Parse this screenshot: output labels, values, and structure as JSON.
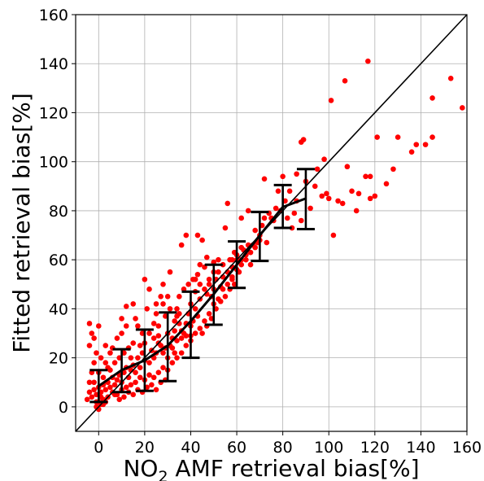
{
  "chart_data": {
    "type": "scatter",
    "xlabel": "NO",
    "xlabel_sub": "2",
    "xlabel_rest": " AMF retrieval bias[%]",
    "ylabel": "Fitted retrieval bias[%]",
    "xlim": [
      -10,
      160
    ],
    "ylim": [
      -10,
      160
    ],
    "x_ticks": [
      0,
      20,
      40,
      60,
      80,
      100,
      120,
      140,
      160
    ],
    "y_ticks": [
      0,
      20,
      40,
      60,
      80,
      100,
      120,
      140,
      160
    ],
    "x_tick_labels": [
      "0",
      "20",
      "40",
      "60",
      "80",
      "100",
      "120",
      "140",
      "160"
    ],
    "y_tick_labels": [
      "0",
      "20",
      "40",
      "60",
      "80",
      "100",
      "120",
      "140",
      "160"
    ],
    "grid": true,
    "identity_line": true,
    "colors": {
      "points": "#ff0000",
      "fit": "#000000",
      "identity": "#000000",
      "grid": "#b0b0b0"
    },
    "points": [
      [
        117,
        141
      ],
      [
        153,
        134
      ],
      [
        107,
        133
      ],
      [
        101,
        125
      ],
      [
        145,
        126
      ],
      [
        158,
        122
      ],
      [
        121,
        110
      ],
      [
        130,
        110
      ],
      [
        145,
        110
      ],
      [
        138,
        107
      ],
      [
        136,
        104
      ],
      [
        128,
        97
      ],
      [
        142,
        107
      ],
      [
        110,
        88
      ],
      [
        113,
        87
      ],
      [
        118,
        85
      ],
      [
        116,
        94
      ],
      [
        118,
        94
      ],
      [
        112,
        80
      ],
      [
        102,
        70
      ],
      [
        120,
        86
      ],
      [
        125,
        91
      ],
      [
        108,
        98
      ],
      [
        95,
        97
      ],
      [
        98,
        101
      ],
      [
        88,
        108
      ],
      [
        89,
        109
      ],
      [
        94,
        90
      ],
      [
        97,
        86
      ],
      [
        99,
        87
      ],
      [
        104,
        84
      ],
      [
        106,
        83
      ],
      [
        100,
        85
      ],
      [
        90,
        92
      ],
      [
        92,
        81
      ],
      [
        85,
        79
      ],
      [
        86,
        84
      ],
      [
        88,
        76
      ],
      [
        82,
        77
      ],
      [
        84,
        73
      ],
      [
        86,
        95
      ],
      [
        80,
        94
      ],
      [
        78,
        88
      ],
      [
        83,
        88
      ],
      [
        81,
        84
      ],
      [
        79,
        80
      ],
      [
        77,
        81
      ],
      [
        76,
        76
      ],
      [
        74,
        79
      ],
      [
        72,
        77
      ],
      [
        70,
        70
      ],
      [
        71,
        74
      ],
      [
        73,
        67
      ],
      [
        69,
        67
      ],
      [
        67,
        66
      ],
      [
        68,
        72
      ],
      [
        75,
        77
      ],
      [
        72,
        93
      ],
      [
        65,
        66
      ],
      [
        63,
        64
      ],
      [
        64,
        60
      ],
      [
        66,
        58
      ],
      [
        62,
        58
      ],
      [
        60,
        60
      ],
      [
        61,
        55
      ],
      [
        58,
        57
      ],
      [
        57,
        60
      ],
      [
        59,
        63
      ],
      [
        58,
        52
      ],
      [
        56,
        83
      ],
      [
        55,
        73
      ],
      [
        62,
        77
      ],
      [
        65,
        80
      ],
      [
        52,
        55
      ],
      [
        53,
        49
      ],
      [
        50,
        48
      ],
      [
        51,
        52
      ],
      [
        49,
        45
      ],
      [
        47,
        46
      ],
      [
        54,
        53
      ],
      [
        48,
        52
      ],
      [
        46,
        57
      ],
      [
        50,
        59
      ],
      [
        45,
        68
      ],
      [
        47,
        61
      ],
      [
        44,
        44
      ],
      [
        42,
        40
      ],
      [
        43,
        37
      ],
      [
        41,
        35
      ],
      [
        40,
        42
      ],
      [
        39,
        38
      ],
      [
        38,
        34
      ],
      [
        37,
        30
      ],
      [
        40,
        29
      ],
      [
        36,
        28
      ],
      [
        42,
        47
      ],
      [
        38,
        70
      ],
      [
        43,
        70
      ],
      [
        36,
        66
      ],
      [
        44,
        58
      ],
      [
        35,
        34
      ],
      [
        33,
        31
      ],
      [
        34,
        37
      ],
      [
        32,
        28
      ],
      [
        31,
        25
      ],
      [
        30,
        30
      ],
      [
        29,
        24
      ],
      [
        33,
        22
      ],
      [
        34,
        40
      ],
      [
        30,
        45
      ],
      [
        31,
        55
      ],
      [
        28,
        42
      ],
      [
        27,
        25
      ],
      [
        26,
        29
      ],
      [
        25,
        22
      ],
      [
        24,
        20
      ],
      [
        23,
        23
      ],
      [
        22,
        18
      ],
      [
        24,
        28
      ],
      [
        26,
        33
      ],
      [
        25,
        38
      ],
      [
        21,
        40
      ],
      [
        22,
        48
      ],
      [
        28,
        50
      ],
      [
        20,
        52
      ],
      [
        20,
        19
      ],
      [
        19,
        22
      ],
      [
        18,
        16
      ],
      [
        17,
        20
      ],
      [
        16,
        14
      ],
      [
        15,
        17
      ],
      [
        14,
        15
      ],
      [
        18,
        25
      ],
      [
        19,
        30
      ],
      [
        17,
        33
      ],
      [
        16,
        36
      ],
      [
        12,
        41
      ],
      [
        15,
        42
      ],
      [
        10,
        36
      ],
      [
        13,
        12
      ],
      [
        12,
        16
      ],
      [
        11,
        14
      ],
      [
        10,
        10
      ],
      [
        9,
        13
      ],
      [
        8,
        11
      ],
      [
        7,
        9
      ],
      [
        6,
        12
      ],
      [
        5,
        8
      ],
      [
        4,
        10
      ],
      [
        3,
        7
      ],
      [
        2,
        9
      ],
      [
        1,
        6
      ],
      [
        0,
        8
      ],
      [
        -1,
        5
      ],
      [
        -2,
        7
      ],
      [
        -3,
        4
      ],
      [
        -4,
        6
      ],
      [
        -5,
        3
      ],
      [
        -4,
        10
      ],
      [
        -3,
        14
      ],
      [
        -2,
        18
      ],
      [
        -1,
        22
      ],
      [
        -4,
        25
      ],
      [
        -3,
        30
      ],
      [
        -4,
        34
      ],
      [
        -2,
        28
      ],
      [
        0,
        33
      ],
      [
        1,
        20
      ],
      [
        3,
        25
      ],
      [
        5,
        22
      ],
      [
        0,
        2
      ],
      [
        1,
        1
      ],
      [
        2,
        3
      ],
      [
        -1,
        2
      ],
      [
        3,
        2
      ],
      [
        4,
        4
      ],
      [
        6,
        6
      ],
      [
        8,
        5
      ],
      [
        10,
        7
      ],
      [
        12,
        8
      ],
      [
        14,
        9
      ],
      [
        16,
        10
      ],
      [
        18,
        12
      ],
      [
        20,
        11
      ],
      [
        22,
        13
      ],
      [
        24,
        12
      ],
      [
        26,
        14
      ],
      [
        28,
        16
      ],
      [
        30,
        15
      ],
      [
        32,
        18
      ],
      [
        34,
        20
      ],
      [
        36,
        22
      ],
      [
        38,
        25
      ],
      [
        40,
        27
      ],
      [
        42,
        30
      ],
      [
        44,
        32
      ],
      [
        46,
        35
      ],
      [
        48,
        38
      ],
      [
        50,
        42
      ],
      [
        52,
        44
      ],
      [
        54,
        48
      ],
      [
        56,
        50
      ],
      [
        58,
        53
      ],
      [
        60,
        56
      ],
      [
        62,
        60
      ],
      [
        5,
        15
      ],
      [
        7,
        18
      ],
      [
        9,
        20
      ],
      [
        11,
        22
      ],
      [
        13,
        24
      ],
      [
        15,
        26
      ],
      [
        8,
        28
      ],
      [
        10,
        30
      ],
      [
        12,
        33
      ],
      [
        14,
        20
      ],
      [
        6,
        24
      ],
      [
        4,
        16
      ],
      [
        2,
        12
      ],
      [
        0,
        14
      ],
      [
        -2,
        10
      ],
      [
        20,
        26
      ],
      [
        22,
        30
      ],
      [
        24,
        34
      ],
      [
        26,
        26
      ],
      [
        28,
        22
      ],
      [
        30,
        20
      ],
      [
        32,
        24
      ],
      [
        34,
        27
      ],
      [
        36,
        31
      ],
      [
        38,
        29
      ],
      [
        40,
        33
      ],
      [
        25,
        42
      ],
      [
        27,
        45
      ],
      [
        29,
        37
      ],
      [
        31,
        40
      ],
      [
        3,
        18
      ],
      [
        7,
        5
      ],
      [
        9,
        3
      ],
      [
        11,
        4
      ],
      [
        13,
        6
      ],
      [
        15,
        5
      ],
      [
        17,
        7
      ],
      [
        19,
        6
      ],
      [
        21,
        8
      ],
      [
        23,
        9
      ],
      [
        25,
        7
      ],
      [
        27,
        10
      ],
      [
        29,
        11
      ],
      [
        2,
        1
      ],
      [
        -1,
        0
      ],
      [
        0,
        -1
      ],
      [
        1,
        4
      ],
      [
        45,
        30
      ],
      [
        47,
        33
      ],
      [
        49,
        36
      ],
      [
        51,
        40
      ],
      [
        53,
        43
      ],
      [
        55,
        45
      ],
      [
        57,
        48
      ],
      [
        59,
        50
      ],
      [
        35,
        45
      ],
      [
        37,
        48
      ],
      [
        39,
        50
      ],
      [
        41,
        52
      ],
      [
        43,
        54
      ],
      [
        33,
        35
      ],
      [
        35,
        38
      ],
      [
        66,
        63
      ],
      [
        68,
        65
      ],
      [
        70,
        68
      ],
      [
        64,
        62
      ],
      [
        62,
        65
      ],
      [
        60,
        62
      ],
      [
        58,
        60
      ],
      [
        56,
        55
      ],
      [
        54,
        58
      ],
      [
        52,
        60
      ],
      [
        50,
        55
      ],
      [
        48,
        50
      ],
      [
        46,
        48
      ],
      [
        44,
        50
      ],
      [
        42,
        52
      ]
    ],
    "fit_line": {
      "x": [
        0,
        10,
        20,
        30,
        40,
        50,
        60,
        70,
        80,
        90
      ],
      "y": [
        8.5,
        15,
        19,
        25,
        35,
        46,
        58,
        70,
        81.5,
        85
      ]
    },
    "error_bars": [
      {
        "x": 0,
        "low": 2,
        "high": 15
      },
      {
        "x": 10,
        "low": 6,
        "high": 23.5
      },
      {
        "x": 20,
        "low": 6.5,
        "high": 31.5
      },
      {
        "x": 30,
        "low": 10.5,
        "high": 38.5
      },
      {
        "x": 40,
        "low": 20,
        "high": 47
      },
      {
        "x": 50,
        "low": 33.5,
        "high": 58
      },
      {
        "x": 60,
        "low": 48.5,
        "high": 67.5
      },
      {
        "x": 70,
        "low": 59.5,
        "high": 79.5
      },
      {
        "x": 80,
        "low": 73,
        "high": 90.5
      },
      {
        "x": 90,
        "low": 72.5,
        "high": 97
      }
    ]
  }
}
